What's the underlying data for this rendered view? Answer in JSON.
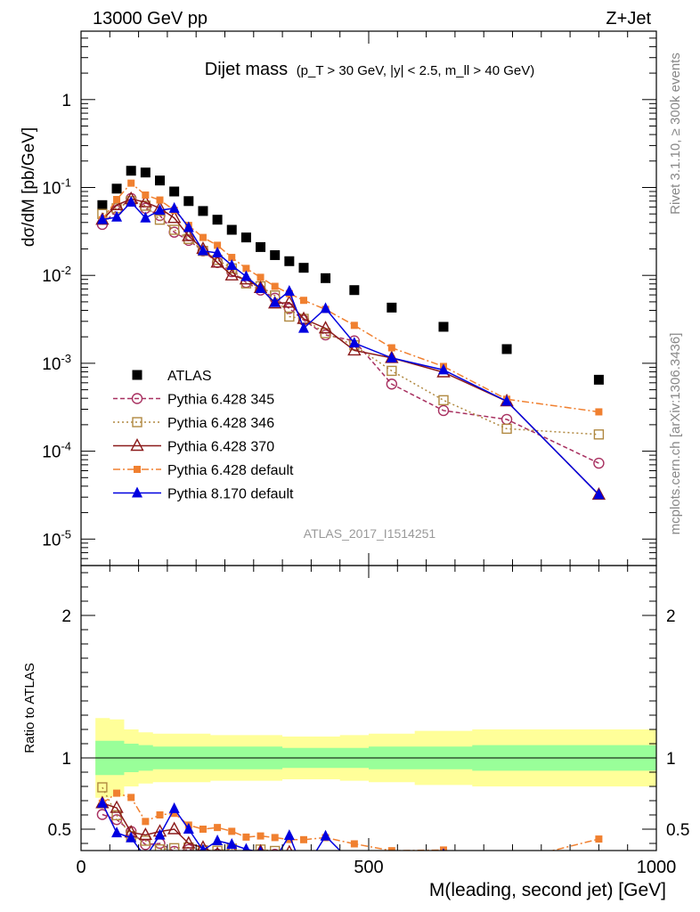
{
  "header": {
    "left": "13000 GeV pp",
    "right": "Z+Jet"
  },
  "side_labels": {
    "rivet": "Rivet 3.1.10, ≥ 300k events",
    "mcplots": "mcplots.cern.ch [arXiv:1306.3436]"
  },
  "chart_data": {
    "type": "scatter",
    "title": "Dijet mass",
    "subtitle": "(p_T > 30 GeV, |y| < 2.5, m_ll > 40 GeV)",
    "analysis_label": "ATLAS_2017_I1514251",
    "xlabel": "M(leading, second jet) [GeV]",
    "ylabel": "dσ/dM [pb/GeV]",
    "ratio_ylabel": "Ratio to ATLAS",
    "xlim": [
      0,
      1000
    ],
    "ylim": [
      5e-06,
      6
    ],
    "ylog": true,
    "ratio_ylim": [
      0.35,
      2.35
    ],
    "x_ticks": [
      "0",
      "500",
      "1000"
    ],
    "y_ticks": [
      "10^-5",
      "10^-4",
      "10^-3",
      "10^-2",
      "10^-1",
      "1"
    ],
    "ratio_ticks": [
      "0.5",
      "1",
      "2"
    ],
    "legend_position": "bottom-left",
    "bins": [
      25,
      50,
      75,
      100,
      125,
      150,
      175,
      200,
      225,
      250,
      275,
      300,
      325,
      350,
      375,
      400,
      450,
      500,
      580,
      680,
      800,
      1000
    ],
    "series": [
      {
        "name": "ATLAS",
        "color": "#000000",
        "marker": "square-filled",
        "line": "none",
        "x": [
          37,
          62,
          87,
          112,
          137,
          162,
          187,
          212,
          237,
          262,
          287,
          312,
          337,
          362,
          387,
          425,
          475,
          540,
          630,
          740,
          900
        ],
        "y": [
          0.063,
          0.097,
          0.155,
          0.148,
          0.12,
          0.09,
          0.07,
          0.054,
          0.043,
          0.033,
          0.027,
          0.021,
          0.017,
          0.0145,
          0.0122,
          0.0093,
          0.0068,
          0.0043,
          0.0026,
          0.00145,
          0.00065
        ]
      },
      {
        "name": "Pythia 6.428 345",
        "color": "#a83060",
        "marker": "circle-open",
        "line": "dashed",
        "x": [
          37,
          62,
          87,
          112,
          137,
          162,
          187,
          212,
          237,
          262,
          287,
          312,
          337,
          362,
          387,
          425,
          475,
          540,
          630,
          740,
          900
        ],
        "y": [
          0.038,
          0.055,
          0.075,
          0.058,
          0.048,
          0.031,
          0.025,
          0.019,
          0.014,
          0.011,
          0.0083,
          0.0068,
          0.0055,
          0.0042,
          0.0031,
          0.0021,
          0.0018,
          0.00058,
          0.00029,
          0.00023,
          7.3e-05
        ]
      },
      {
        "name": "Pythia 6.428 346",
        "color": "#b08840",
        "marker": "square-open",
        "line": "dotted",
        "x": [
          37,
          62,
          87,
          112,
          137,
          162,
          187,
          212,
          237,
          262,
          287,
          312,
          337,
          362,
          387,
          425,
          475,
          540,
          630,
          740,
          900
        ],
        "y": [
          0.05,
          0.058,
          0.07,
          0.062,
          0.043,
          0.033,
          0.026,
          0.019,
          0.015,
          0.012,
          0.0081,
          0.0075,
          0.0059,
          0.0034,
          0.0032,
          0.0022,
          0.0016,
          0.00082,
          0.00038,
          0.00018,
          0.000155
        ]
      },
      {
        "name": "Pythia 6.428 370",
        "color": "#8b1a1a",
        "marker": "triangle-open",
        "line": "solid",
        "x": [
          37,
          62,
          87,
          112,
          137,
          162,
          187,
          212,
          237,
          262,
          287,
          312,
          337,
          362,
          387,
          425,
          475,
          540,
          630,
          740,
          900
        ],
        "y": [
          0.043,
          0.063,
          0.074,
          0.068,
          0.058,
          0.045,
          0.028,
          0.02,
          0.014,
          0.01,
          0.009,
          0.0072,
          0.0048,
          0.0049,
          0.0032,
          0.0025,
          0.0014,
          0.00115,
          0.00079,
          0.00037,
          3.2e-05
        ]
      },
      {
        "name": "Pythia 6.428 default",
        "color": "#f08030",
        "marker": "square-filled-small",
        "line": "dashdot",
        "x": [
          37,
          62,
          87,
          112,
          137,
          162,
          187,
          212,
          237,
          262,
          287,
          312,
          337,
          362,
          387,
          425,
          475,
          540,
          630,
          740,
          900
        ],
        "y": [
          0.043,
          0.073,
          0.112,
          0.082,
          0.072,
          0.055,
          0.037,
          0.027,
          0.022,
          0.016,
          0.012,
          0.0095,
          0.0075,
          0.0062,
          0.0052,
          0.0041,
          0.0027,
          0.0015,
          0.00092,
          0.00039,
          0.00028
        ]
      },
      {
        "name": "Pythia 8.170 default",
        "color": "#0000e0",
        "marker": "triangle-filled",
        "line": "solid",
        "x": [
          37,
          62,
          87,
          112,
          137,
          162,
          187,
          212,
          237,
          262,
          287,
          312,
          337,
          362,
          387,
          425,
          475,
          540,
          630,
          740,
          900
        ],
        "y": [
          0.043,
          0.046,
          0.068,
          0.045,
          0.055,
          0.058,
          0.035,
          0.019,
          0.018,
          0.013,
          0.0097,
          0.0071,
          0.0049,
          0.0066,
          0.0025,
          0.0042,
          0.0017,
          0.00115,
          0.00084,
          0.00037,
          3.2e-05
        ]
      }
    ],
    "ratio_band_outer": [
      0.72,
      0.73,
      0.8,
      0.82,
      0.83,
      0.83,
      0.83,
      0.83,
      0.84,
      0.84,
      0.84,
      0.84,
      0.84,
      0.85,
      0.85,
      0.85,
      0.84,
      0.83,
      0.81,
      0.8,
      0.8
    ],
    "ratio_band_inner": [
      0.88,
      0.88,
      0.9,
      0.91,
      0.92,
      0.92,
      0.92,
      0.92,
      0.92,
      0.92,
      0.92,
      0.92,
      0.92,
      0.93,
      0.93,
      0.93,
      0.93,
      0.92,
      0.92,
      0.91,
      0.91
    ],
    "ratio_band_outer_up": [
      1.28,
      1.27,
      1.2,
      1.18,
      1.17,
      1.17,
      1.17,
      1.17,
      1.16,
      1.16,
      1.16,
      1.16,
      1.16,
      1.15,
      1.15,
      1.15,
      1.16,
      1.17,
      1.19,
      1.2,
      1.2
    ],
    "ratio_band_inner_up": [
      1.12,
      1.12,
      1.1,
      1.09,
      1.08,
      1.08,
      1.08,
      1.08,
      1.08,
      1.08,
      1.08,
      1.08,
      1.08,
      1.07,
      1.07,
      1.07,
      1.07,
      1.08,
      1.08,
      1.09,
      1.09
    ]
  }
}
